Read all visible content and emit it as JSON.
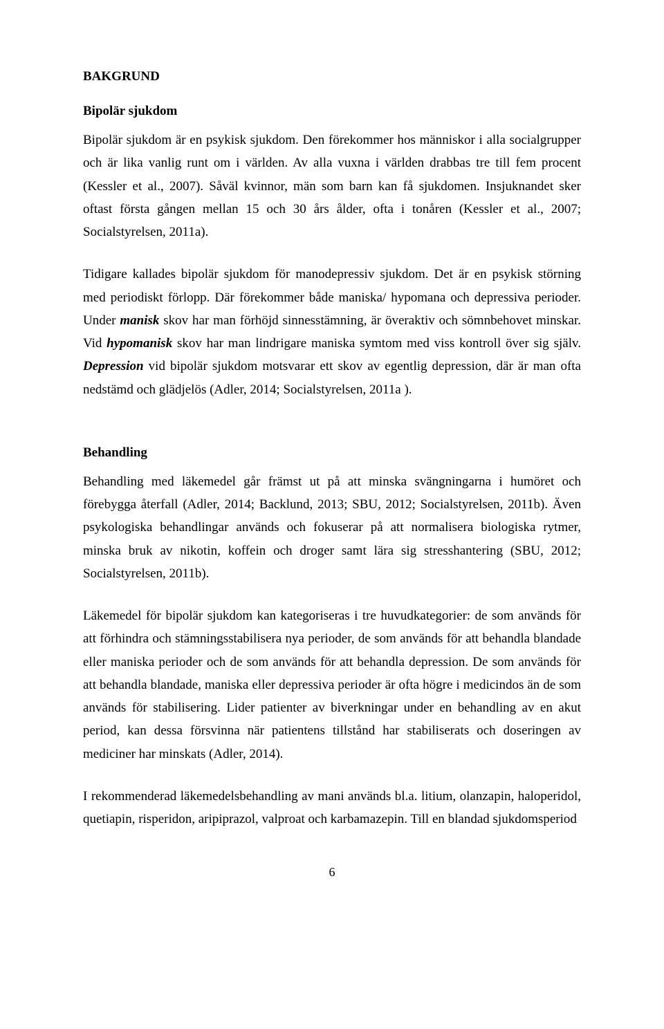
{
  "page": {
    "background_color": "#ffffff",
    "text_color": "#000000",
    "font_family": "Times New Roman",
    "body_fontsize_pt": 14,
    "heading_fontsize_pt": 14,
    "line_height": 1.75,
    "page_number": "6"
  },
  "headings": {
    "main": "BAKGRUND",
    "h1": "Bipolär sjukdom",
    "h2": "Behandling"
  },
  "paragraphs": {
    "p1": "Bipolär sjukdom är en psykisk sjukdom. Den förekommer hos människor i alla socialgrupper och är lika vanlig runt om i världen. Av alla vuxna i världen drabbas tre till fem procent (Kessler et al., 2007). Såväl kvinnor, män som barn kan få sjukdomen. Insjuknandet sker oftast första gången mellan 15 och 30 års ålder, ofta i tonåren (Kessler et al., 2007; Socialstyrelsen, 2011a).",
    "p2_a": "Tidigare kallades bipolär sjukdom för manodepressiv sjukdom. Det är en psykisk störning med periodiskt förlopp. Där förekommer både maniska/ hypomana och depressiva perioder. Under ",
    "p2_manisk": "manisk",
    "p2_b": " skov har man förhöjd sinnesstämning, är överaktiv och sömnbehovet minskar. Vid ",
    "p2_hypomanisk": "hypomanisk",
    "p2_c": " skov har man lindrigare maniska symtom med viss kontroll över sig själv. ",
    "p2_depression": "Depression",
    "p2_d": " vid bipolär sjukdom motsvarar ett skov av egentlig depression, där är man ofta nedstämd och glädjelös (Adler, 2014; Socialstyrelsen, 2011a ).",
    "p3": "Behandling med läkemedel går främst ut på att minska svängningarna i humöret och förebygga återfall (Adler, 2014; Backlund, 2013; SBU, 2012; Socialstyrelsen, 2011b). Även psykologiska behandlingar används och fokuserar på att normalisera biologiska rytmer, minska bruk av nikotin, koffein och droger samt lära sig stresshantering (SBU, 2012; Socialstyrelsen, 2011b).",
    "p4": "Läkemedel för bipolär sjukdom kan kategoriseras i tre huvudkategorier: de som används för att förhindra och stämningsstabilisera nya perioder, de som används för att behandla blandade eller maniska perioder och de som används för att behandla depression. De som används för att behandla blandade, maniska eller depressiva perioder är ofta högre i medicindos än de som används för stabilisering. Lider patienter av biverkningar under en behandling av en akut period, kan dessa försvinna när patientens tillstånd har stabiliserats och doseringen av mediciner har minskats (Adler, 2014).",
    "p5": "I rekommenderad läkemedelsbehandling av mani används bl.a. litium, olanzapin, haloperidol, quetiapin, risperidon, aripiprazol, valproat och karbamazepin. Till en blandad sjukdomsperiod"
  }
}
